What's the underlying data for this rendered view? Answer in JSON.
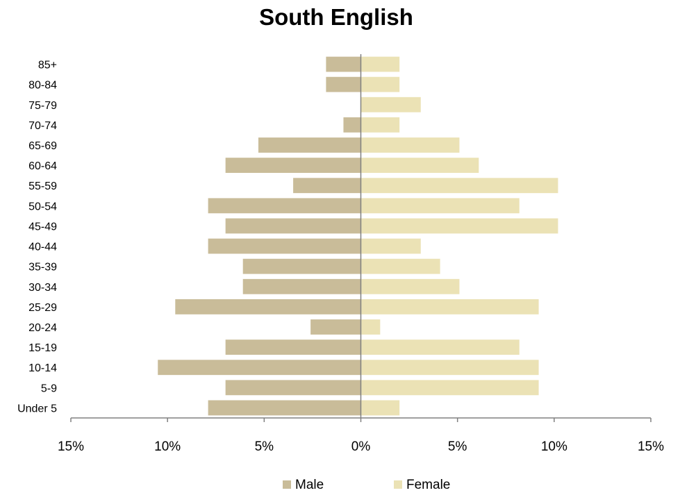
{
  "chart_data": {
    "type": "bar",
    "orientation": "horizontal",
    "title": "South English",
    "categories": [
      "Under 5",
      "5-9",
      "10-14",
      "15-19",
      "20-24",
      "25-29",
      "30-34",
      "35-39",
      "40-44",
      "45-49",
      "50-54",
      "55-59",
      "60-64",
      "65-69",
      "70-74",
      "75-79",
      "80-84",
      "85+"
    ],
    "series": [
      {
        "name": "Male",
        "color": "#c9bc99",
        "values": [
          -7.9,
          -7.0,
          -10.5,
          -7.0,
          -2.6,
          -9.6,
          -6.1,
          -6.1,
          -7.9,
          -7.0,
          -7.9,
          -3.5,
          -7.0,
          -5.3,
          -0.9,
          0,
          -1.8,
          -1.8
        ]
      },
      {
        "name": "Female",
        "color": "#ebe2b5",
        "values": [
          2.0,
          9.2,
          9.2,
          8.2,
          1.0,
          9.2,
          5.1,
          4.1,
          3.1,
          10.2,
          8.2,
          10.2,
          6.1,
          5.1,
          2.0,
          3.1,
          2.0,
          2.0
        ]
      }
    ],
    "xlim": [
      -15,
      15
    ],
    "xticks": [
      -15,
      -10,
      -5,
      0,
      5,
      10,
      15
    ],
    "xtick_labels": [
      "15%",
      "10%",
      "5%",
      "0%",
      "5%",
      "10%",
      "15%"
    ],
    "grid": false,
    "legend_position": "bottom"
  }
}
